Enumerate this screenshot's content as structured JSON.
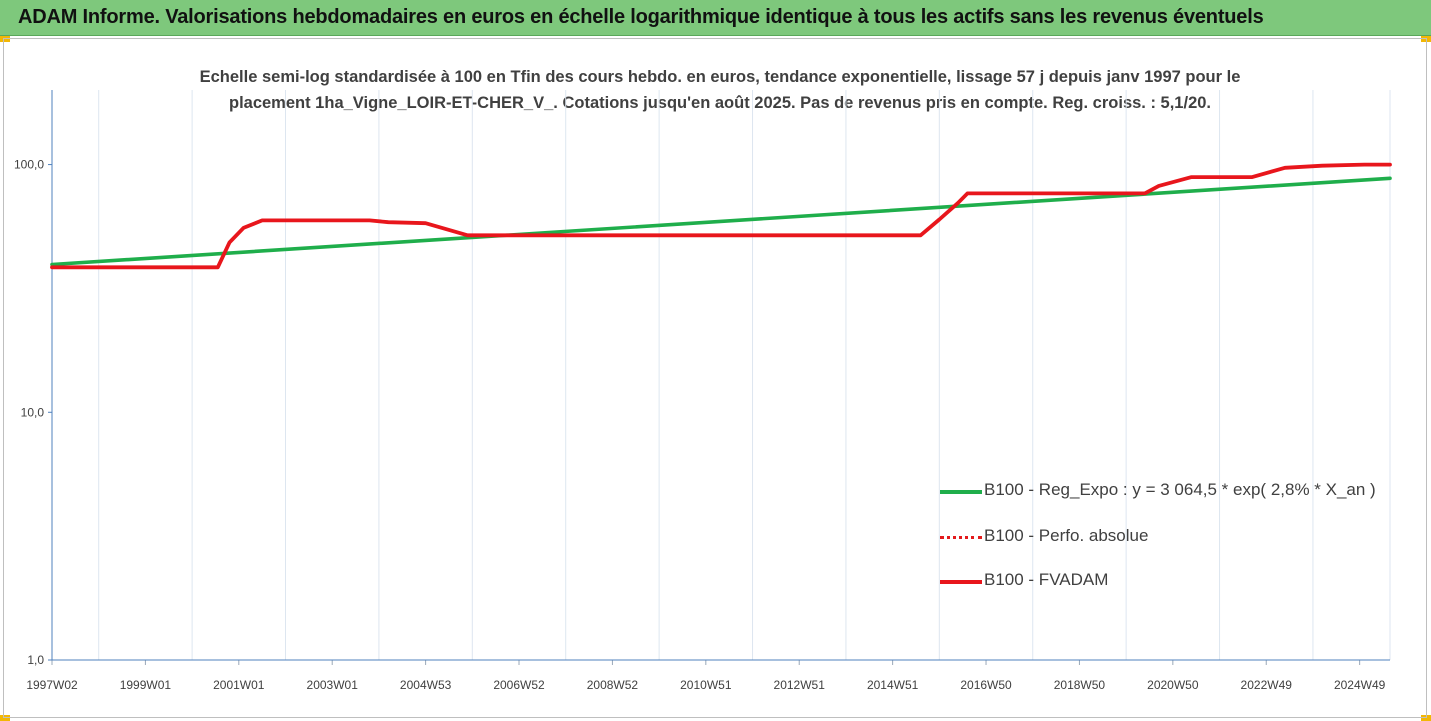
{
  "banner": {
    "title": "ADAM Informe. Valorisations hebdomadaires en euros en échelle logarithmique identique à tous les actifs sans les revenus éventuels"
  },
  "chart_data": {
    "type": "line",
    "title_line1": "Echelle semi-log standardisée à 100 en Tfin des cours hebdo. en euros, tendance exponentielle, lissage 57 j depuis janv 1997 pour le",
    "title_line2": "placement 1ha_Vigne_LOIR-ET-CHER_V_. Cotations jusqu'en août 2025. Pas de revenus pris en compte. Reg. croiss. : 5,1/20.",
    "y_scale": "log",
    "ylim": [
      1,
      200
    ],
    "y_ticks": [
      {
        "value": 1,
        "label": "1,0"
      },
      {
        "value": 10,
        "label": "10,0"
      },
      {
        "value": 100,
        "label": "100,0"
      }
    ],
    "xlim": [
      1997.0,
      2025.65
    ],
    "x_ticks": [
      {
        "value": 1997.0,
        "label": "1997W02"
      },
      {
        "value": 1999.0,
        "label": "1999W01"
      },
      {
        "value": 2001.0,
        "label": "2001W01"
      },
      {
        "value": 2003.0,
        "label": "2003W01"
      },
      {
        "value": 2005.0,
        "label": "2004W53"
      },
      {
        "value": 2007.0,
        "label": "2006W52"
      },
      {
        "value": 2009.0,
        "label": "2008W52"
      },
      {
        "value": 2011.0,
        "label": "2010W51"
      },
      {
        "value": 2013.0,
        "label": "2012W51"
      },
      {
        "value": 2015.0,
        "label": "2014W51"
      },
      {
        "value": 2017.0,
        "label": "2016W50"
      },
      {
        "value": 2019.0,
        "label": "2018W50"
      },
      {
        "value": 2021.0,
        "label": "2020W50"
      },
      {
        "value": 2023.0,
        "label": "2022W49"
      },
      {
        "value": 2025.0,
        "label": "2024W49"
      }
    ],
    "grid": "vertical",
    "legend_position": "bottom-right",
    "series": [
      {
        "name": "B100 - Reg_Expo : y = 3 064,5 * exp( 2,8% *  X_an )",
        "color": "#1fae4b",
        "style": "solid",
        "x": [
          1997.0,
          2025.65
        ],
        "y": [
          39.5,
          88.0
        ]
      },
      {
        "name": "B100 - Perfo. absolue",
        "color": "#e31a1c",
        "style": "dotted",
        "x": [],
        "y": []
      },
      {
        "name": "B100 - FVADAM",
        "color": "#e8161c",
        "style": "solid",
        "x": [
          1997.0,
          2000.55,
          2000.8,
          2001.1,
          2001.5,
          2003.8,
          2004.2,
          2005.0,
          2005.9,
          2015.3,
          2015.6,
          2016.0,
          2016.4,
          2016.6,
          2020.4,
          2020.7,
          2021.4,
          2022.7,
          2023.4,
          2024.2,
          2025.1,
          2025.65
        ],
        "y": [
          38.5,
          38.5,
          48.5,
          55.5,
          59.5,
          59.5,
          58.5,
          58.0,
          51.8,
          51.8,
          51.8,
          60.0,
          70.0,
          76.5,
          76.5,
          82.0,
          89.0,
          89.0,
          97.0,
          99.0,
          100.0,
          100.0
        ]
      }
    ]
  }
}
